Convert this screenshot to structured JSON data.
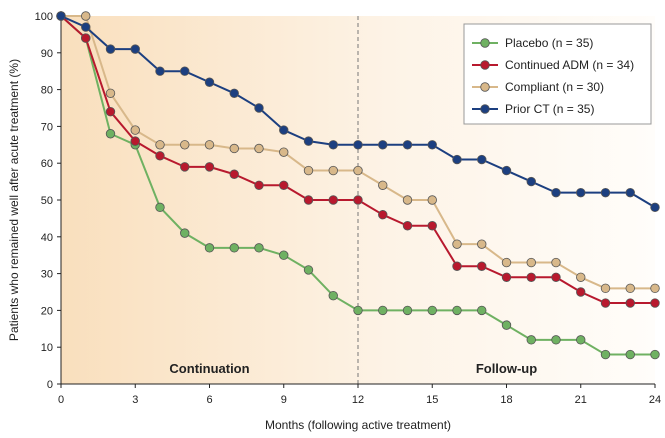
{
  "chart_data": {
    "type": "line",
    "title": "",
    "xlabel": "Months (following active treatment)",
    "ylabel": "Patients who remained well after acute treatment (%)",
    "xlim": [
      0,
      24
    ],
    "ylim": [
      0,
      100
    ],
    "xticks": [
      0,
      3,
      6,
      9,
      12,
      15,
      18,
      21,
      24
    ],
    "yticks": [
      0,
      10,
      20,
      30,
      40,
      50,
      60,
      70,
      80,
      90,
      100
    ],
    "grid": false,
    "legend_position": "top-right",
    "divider_x": 12,
    "phases": [
      {
        "label": "Continuation",
        "x": 6
      },
      {
        "label": "Follow-up",
        "x": 18
      }
    ],
    "series": [
      {
        "name": "Placebo (n = 35)",
        "color": "#6fb162",
        "x": [
          0,
          1,
          2,
          3,
          4,
          5,
          6,
          7,
          8,
          9,
          10,
          11,
          12,
          13,
          14,
          15,
          16,
          17,
          18,
          19,
          20,
          21,
          22,
          23,
          24
        ],
        "y": [
          100,
          94,
          68,
          65,
          48,
          41,
          37,
          37,
          37,
          35,
          31,
          24,
          20,
          20,
          20,
          20,
          20,
          20,
          16,
          12,
          12,
          12,
          8,
          8,
          8
        ]
      },
      {
        "name": "Continued ADM (n = 34)",
        "color": "#b8192e",
        "x": [
          0,
          1,
          2,
          3,
          4,
          5,
          6,
          7,
          8,
          9,
          10,
          11,
          12,
          13,
          14,
          15,
          16,
          17,
          18,
          19,
          20,
          21,
          22,
          23,
          24
        ],
        "y": [
          100,
          94,
          74,
          66,
          62,
          59,
          59,
          57,
          54,
          54,
          50,
          50,
          50,
          46,
          43,
          43,
          32,
          32,
          29,
          29,
          29,
          25,
          22,
          22,
          22
        ]
      },
      {
        "name": "Compliant (n = 30)",
        "color": "#d8b88a",
        "x": [
          0,
          1,
          2,
          3,
          4,
          5,
          6,
          7,
          8,
          9,
          10,
          11,
          12,
          13,
          14,
          15,
          16,
          17,
          18,
          19,
          20,
          21,
          22,
          23,
          24
        ],
        "y": [
          100,
          100,
          79,
          69,
          65,
          65,
          65,
          64,
          64,
          63,
          58,
          58,
          58,
          54,
          50,
          50,
          38,
          38,
          33,
          33,
          33,
          29,
          26,
          26,
          26
        ]
      },
      {
        "name": "Prior CT (n = 35)",
        "color": "#1c3f80",
        "x": [
          0,
          1,
          2,
          3,
          4,
          5,
          6,
          7,
          8,
          9,
          10,
          11,
          12,
          13,
          14,
          15,
          16,
          17,
          18,
          19,
          20,
          21,
          22,
          23,
          24
        ],
        "y": [
          100,
          97,
          91,
          91,
          85,
          85,
          82,
          79,
          75,
          69,
          66,
          65,
          65,
          65,
          65,
          65,
          61,
          61,
          58,
          55,
          52,
          52,
          52,
          52,
          48
        ]
      }
    ]
  }
}
